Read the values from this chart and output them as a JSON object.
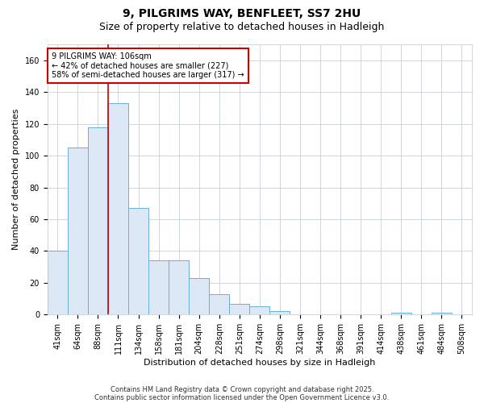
{
  "title1": "9, PILGRIMS WAY, BENFLEET, SS7 2HU",
  "title2": "Size of property relative to detached houses in Hadleigh",
  "xlabel": "Distribution of detached houses by size in Hadleigh",
  "ylabel": "Number of detached properties",
  "categories": [
    "41sqm",
    "64sqm",
    "88sqm",
    "111sqm",
    "134sqm",
    "158sqm",
    "181sqm",
    "204sqm",
    "228sqm",
    "251sqm",
    "274sqm",
    "298sqm",
    "321sqm",
    "344sqm",
    "368sqm",
    "391sqm",
    "414sqm",
    "438sqm",
    "461sqm",
    "484sqm",
    "508sqm"
  ],
  "values": [
    40,
    105,
    118,
    133,
    67,
    34,
    34,
    23,
    13,
    7,
    5,
    2,
    0,
    0,
    0,
    0,
    0,
    1,
    0,
    1,
    0
  ],
  "bar_color": "#dce8f5",
  "bar_edge_color": "#6aaed6",
  "annotation_text": "9 PILGRIMS WAY: 106sqm\n← 42% of detached houses are smaller (227)\n58% of semi-detached houses are larger (317) →",
  "annotation_box_color": "#ffffff",
  "annotation_box_edge_color": "#cc0000",
  "vline_color": "#cc0000",
  "vline_x": 2.5,
  "ylim": [
    0,
    170
  ],
  "yticks": [
    0,
    20,
    40,
    60,
    80,
    100,
    120,
    140,
    160
  ],
  "grid_color": "#c8d0d8",
  "bg_color": "#ffffff",
  "footer1": "Contains HM Land Registry data © Crown copyright and database right 2025.",
  "footer2": "Contains public sector information licensed under the Open Government Licence v3.0.",
  "title_fontsize": 10,
  "subtitle_fontsize": 9,
  "axis_label_fontsize": 8,
  "tick_fontsize": 7,
  "annotation_fontsize": 7,
  "footer_fontsize": 6
}
